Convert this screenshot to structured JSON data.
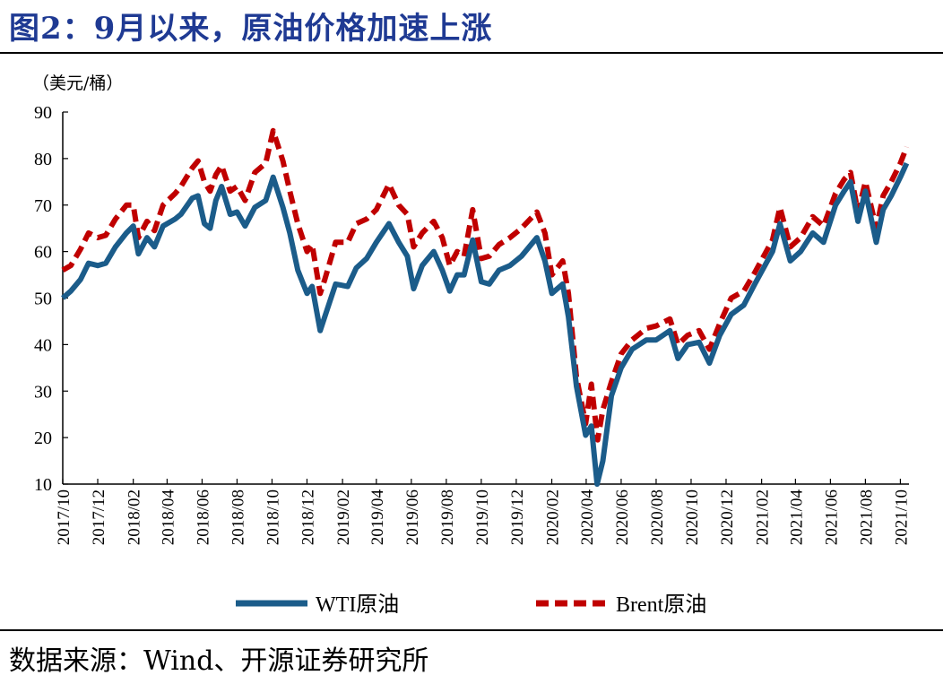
{
  "header": {
    "title": "图2：9月以来，原油价格加速上涨"
  },
  "footer": {
    "source": "数据来源：Wind、开源证券研究所"
  },
  "colors": {
    "wti": "#1b5c8a",
    "brent": "#c00000"
  },
  "chart_data": {
    "type": "line",
    "ylabel": "（美元/桶）",
    "ylim": [
      10,
      90
    ],
    "yticks": [
      10,
      20,
      30,
      40,
      50,
      60,
      70,
      80,
      90
    ],
    "xlim": [
      "2017-10",
      "2021-10"
    ],
    "xticks": [
      "2017/10",
      "2017/12",
      "2018/02",
      "2018/04",
      "2018/06",
      "2018/08",
      "2018/10",
      "2018/12",
      "2019/02",
      "2019/04",
      "2019/06",
      "2019/08",
      "2019/10",
      "2019/12",
      "2020/02",
      "2020/04",
      "2020/06",
      "2020/08",
      "2020/10",
      "2020/12",
      "2021/02",
      "2021/04",
      "2021/06",
      "2021/08",
      "2021/10"
    ],
    "legend_position": "bottom",
    "series": [
      {
        "name": "WTI原油",
        "style": "solid",
        "points": [
          [
            "2017-10-01",
            50
          ],
          [
            "2017-10-15",
            51.5
          ],
          [
            "2017-11-01",
            54
          ],
          [
            "2017-11-15",
            57.5
          ],
          [
            "2017-12-01",
            57
          ],
          [
            "2017-12-15",
            57.5
          ],
          [
            "2018-01-01",
            61
          ],
          [
            "2018-01-20",
            64
          ],
          [
            "2018-02-01",
            65.5
          ],
          [
            "2018-02-10",
            59.5
          ],
          [
            "2018-02-25",
            63
          ],
          [
            "2018-03-10",
            61
          ],
          [
            "2018-03-25",
            65.5
          ],
          [
            "2018-04-15",
            67
          ],
          [
            "2018-04-25",
            68
          ],
          [
            "2018-05-15",
            71.5
          ],
          [
            "2018-05-25",
            72
          ],
          [
            "2018-06-05",
            66
          ],
          [
            "2018-06-15",
            65
          ],
          [
            "2018-06-25",
            71
          ],
          [
            "2018-07-05",
            74
          ],
          [
            "2018-07-20",
            68
          ],
          [
            "2018-08-01",
            68.5
          ],
          [
            "2018-08-15",
            65.5
          ],
          [
            "2018-09-01",
            69.5
          ],
          [
            "2018-09-20",
            71
          ],
          [
            "2018-10-03",
            76
          ],
          [
            "2018-10-20",
            69.5
          ],
          [
            "2018-11-01",
            64
          ],
          [
            "2018-11-15",
            56
          ],
          [
            "2018-12-01",
            51
          ],
          [
            "2018-12-10",
            52.5
          ],
          [
            "2018-12-24",
            43
          ],
          [
            "2019-01-01",
            46
          ],
          [
            "2019-01-20",
            53
          ],
          [
            "2019-02-10",
            52.5
          ],
          [
            "2019-02-25",
            56.5
          ],
          [
            "2019-03-15",
            58.5
          ],
          [
            "2019-04-01",
            62
          ],
          [
            "2019-04-23",
            66
          ],
          [
            "2019-05-10",
            62
          ],
          [
            "2019-05-25",
            59
          ],
          [
            "2019-06-05",
            52
          ],
          [
            "2019-06-20",
            57
          ],
          [
            "2019-07-10",
            60
          ],
          [
            "2019-07-25",
            56
          ],
          [
            "2019-08-07",
            51.5
          ],
          [
            "2019-08-20",
            55
          ],
          [
            "2019-09-01",
            55
          ],
          [
            "2019-09-16",
            62.5
          ],
          [
            "2019-10-01",
            53.5
          ],
          [
            "2019-10-15",
            53
          ],
          [
            "2019-11-01",
            56
          ],
          [
            "2019-11-20",
            57
          ],
          [
            "2019-12-10",
            59
          ],
          [
            "2020-01-06",
            63
          ],
          [
            "2020-01-20",
            58
          ],
          [
            "2020-02-01",
            51
          ],
          [
            "2020-02-20",
            53
          ],
          [
            "2020-03-01",
            46
          ],
          [
            "2020-03-15",
            31
          ],
          [
            "2020-03-31",
            20.5
          ],
          [
            "2020-04-10",
            22.5
          ],
          [
            "2020-04-20",
            10
          ],
          [
            "2020-04-30",
            15
          ],
          [
            "2020-05-15",
            29
          ],
          [
            "2020-06-01",
            35
          ],
          [
            "2020-06-20",
            39
          ],
          [
            "2020-07-15",
            41
          ],
          [
            "2020-08-01",
            41
          ],
          [
            "2020-08-25",
            43
          ],
          [
            "2020-09-08",
            37
          ],
          [
            "2020-09-25",
            40
          ],
          [
            "2020-10-15",
            40.5
          ],
          [
            "2020-11-02",
            36
          ],
          [
            "2020-11-20",
            42
          ],
          [
            "2020-12-10",
            46.5
          ],
          [
            "2021-01-01",
            48.5
          ],
          [
            "2021-01-20",
            53
          ],
          [
            "2021-02-20",
            60
          ],
          [
            "2021-03-05",
            66
          ],
          [
            "2021-03-23",
            58
          ],
          [
            "2021-04-10",
            60
          ],
          [
            "2021-05-01",
            64
          ],
          [
            "2021-05-20",
            62
          ],
          [
            "2021-06-10",
            70
          ],
          [
            "2021-06-25",
            73
          ],
          [
            "2021-07-06",
            75
          ],
          [
            "2021-07-19",
            66.5
          ],
          [
            "2021-08-01",
            73
          ],
          [
            "2021-08-20",
            62
          ],
          [
            "2021-09-01",
            69
          ],
          [
            "2021-09-15",
            72
          ],
          [
            "2021-10-01",
            76
          ],
          [
            "2021-10-12",
            79
          ]
        ]
      },
      {
        "name": "Brent原油",
        "style": "dashed",
        "points": [
          [
            "2017-10-01",
            56
          ],
          [
            "2017-10-15",
            57
          ],
          [
            "2017-11-01",
            60.5
          ],
          [
            "2017-11-15",
            64
          ],
          [
            "2017-12-01",
            63
          ],
          [
            "2017-12-15",
            63.5
          ],
          [
            "2018-01-01",
            67
          ],
          [
            "2018-01-20",
            70
          ],
          [
            "2018-02-01",
            70
          ],
          [
            "2018-02-10",
            63
          ],
          [
            "2018-02-25",
            66.5
          ],
          [
            "2018-03-10",
            64.5
          ],
          [
            "2018-03-25",
            70
          ],
          [
            "2018-04-15",
            72.5
          ],
          [
            "2018-04-25",
            74
          ],
          [
            "2018-05-15",
            78
          ],
          [
            "2018-05-25",
            79.5
          ],
          [
            "2018-06-05",
            75
          ],
          [
            "2018-06-15",
            73
          ],
          [
            "2018-06-25",
            76.5
          ],
          [
            "2018-07-05",
            78.5
          ],
          [
            "2018-07-20",
            73
          ],
          [
            "2018-08-01",
            74
          ],
          [
            "2018-08-15",
            71
          ],
          [
            "2018-09-01",
            77
          ],
          [
            "2018-09-20",
            79
          ],
          [
            "2018-10-03",
            86
          ],
          [
            "2018-10-20",
            79.5
          ],
          [
            "2018-11-01",
            73
          ],
          [
            "2018-11-15",
            66
          ],
          [
            "2018-12-01",
            60
          ],
          [
            "2018-12-10",
            61.5
          ],
          [
            "2018-12-24",
            51
          ],
          [
            "2019-01-01",
            54
          ],
          [
            "2019-01-20",
            62
          ],
          [
            "2019-02-10",
            62
          ],
          [
            "2019-02-25",
            66
          ],
          [
            "2019-03-15",
            67
          ],
          [
            "2019-04-01",
            69
          ],
          [
            "2019-04-23",
            74.5
          ],
          [
            "2019-05-10",
            70
          ],
          [
            "2019-05-25",
            68
          ],
          [
            "2019-06-05",
            61
          ],
          [
            "2019-06-20",
            64
          ],
          [
            "2019-07-10",
            66.5
          ],
          [
            "2019-07-25",
            63
          ],
          [
            "2019-08-07",
            57
          ],
          [
            "2019-08-20",
            60
          ],
          [
            "2019-09-01",
            59
          ],
          [
            "2019-09-16",
            69
          ],
          [
            "2019-10-01",
            58.5
          ],
          [
            "2019-10-15",
            59
          ],
          [
            "2019-11-01",
            61.5
          ],
          [
            "2019-11-20",
            63
          ],
          [
            "2019-12-10",
            65
          ],
          [
            "2020-01-06",
            68.5
          ],
          [
            "2020-01-20",
            64
          ],
          [
            "2020-02-01",
            55
          ],
          [
            "2020-02-20",
            58
          ],
          [
            "2020-03-01",
            51
          ],
          [
            "2020-03-15",
            33
          ],
          [
            "2020-03-31",
            23
          ],
          [
            "2020-04-10",
            31.5
          ],
          [
            "2020-04-21",
            19.5
          ],
          [
            "2020-04-30",
            26
          ],
          [
            "2020-05-15",
            32
          ],
          [
            "2020-06-01",
            38
          ],
          [
            "2020-06-20",
            41
          ],
          [
            "2020-07-15",
            43.5
          ],
          [
            "2020-08-01",
            44
          ],
          [
            "2020-08-25",
            45.5
          ],
          [
            "2020-09-08",
            40
          ],
          [
            "2020-09-25",
            42
          ],
          [
            "2020-10-15",
            43
          ],
          [
            "2020-11-02",
            39
          ],
          [
            "2020-11-20",
            44.5
          ],
          [
            "2020-12-10",
            50
          ],
          [
            "2021-01-01",
            51.5
          ],
          [
            "2021-01-20",
            55.5
          ],
          [
            "2021-02-20",
            62.5
          ],
          [
            "2021-03-05",
            69.5
          ],
          [
            "2021-03-23",
            61
          ],
          [
            "2021-04-10",
            63
          ],
          [
            "2021-05-01",
            67.5
          ],
          [
            "2021-05-20",
            65.5
          ],
          [
            "2021-06-10",
            72.5
          ],
          [
            "2021-06-25",
            75.5
          ],
          [
            "2021-07-06",
            77
          ],
          [
            "2021-07-19",
            68.5
          ],
          [
            "2021-08-01",
            75
          ],
          [
            "2021-08-20",
            65
          ],
          [
            "2021-09-01",
            72
          ],
          [
            "2021-09-15",
            75
          ],
          [
            "2021-10-01",
            79
          ],
          [
            "2021-10-12",
            82.5
          ]
        ]
      }
    ]
  }
}
